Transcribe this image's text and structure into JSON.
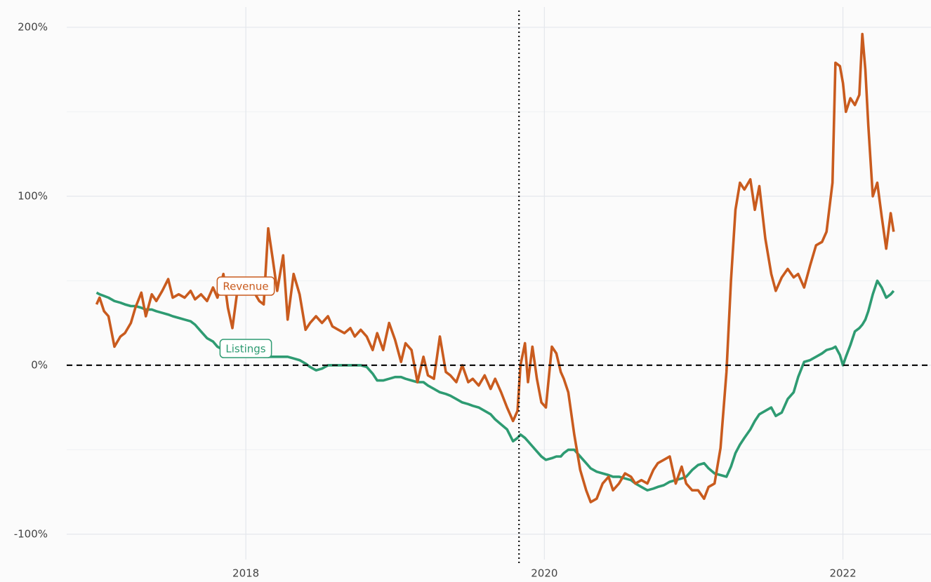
{
  "chart_data": {
    "type": "line",
    "x": [
      2017.0,
      2017.02,
      2017.05,
      2017.08,
      2017.12,
      2017.16,
      2017.19,
      2017.23,
      2017.26,
      2017.3,
      2017.33,
      2017.37,
      2017.4,
      2017.44,
      2017.48,
      2017.51,
      2017.55,
      2017.59,
      2017.63,
      2017.66,
      2017.7,
      2017.74,
      2017.78,
      2017.81,
      2017.85,
      2017.88,
      2017.91,
      2017.94,
      2017.97,
      2018.01,
      2018.05,
      2018.09,
      2018.12,
      2018.15,
      2018.18,
      2018.21,
      2018.25,
      2018.28,
      2018.32,
      2018.36,
      2018.4,
      2018.43,
      2018.47,
      2018.51,
      2018.55,
      2018.58,
      2018.62,
      2018.66,
      2018.7,
      2018.73,
      2018.77,
      2018.81,
      2018.85,
      2018.88,
      2018.92,
      2018.96,
      2019.0,
      2019.04,
      2019.07,
      2019.11,
      2019.15,
      2019.19,
      2019.22,
      2019.26,
      2019.3,
      2019.34,
      2019.37,
      2019.41,
      2019.45,
      2019.49,
      2019.52,
      2019.56,
      2019.6,
      2019.64,
      2019.67,
      2019.71,
      2019.75,
      2019.79,
      2019.82,
      2019.84,
      2019.87,
      2019.89,
      2019.92,
      2019.95,
      2019.98,
      2020.01,
      2020.05,
      2020.08,
      2020.11,
      2020.13,
      2020.16,
      2020.2,
      2020.24,
      2020.28,
      2020.31,
      2020.35,
      2020.39,
      2020.43,
      2020.46,
      2020.5,
      2020.54,
      2020.58,
      2020.61,
      2020.65,
      2020.69,
      2020.73,
      2020.76,
      2020.8,
      2020.84,
      2020.88,
      2020.92,
      2020.95,
      2020.99,
      2021.03,
      2021.07,
      2021.1,
      2021.14,
      2021.18,
      2021.22,
      2021.25,
      2021.28,
      2021.31,
      2021.34,
      2021.38,
      2021.41,
      2021.44,
      2021.48,
      2021.52,
      2021.55,
      2021.59,
      2021.63,
      2021.67,
      2021.7,
      2021.74,
      2021.78,
      2021.82,
      2021.86,
      2021.89,
      2021.93,
      2021.95,
      2021.98,
      2022.0,
      2022.02,
      2022.05,
      2022.08,
      2022.11,
      2022.13,
      2022.15,
      2022.17,
      2022.2,
      2022.23,
      2022.26,
      2022.29,
      2022.32,
      2022.34
    ],
    "series": [
      {
        "name": "Revenue",
        "color": "#c95b1e",
        "values": [
          36,
          40,
          32,
          29,
          11,
          17,
          19,
          25,
          34,
          43,
          29,
          42,
          38,
          44,
          51,
          40,
          42,
          40,
          44,
          39,
          42,
          38,
          46,
          40,
          54,
          34,
          22,
          42,
          46,
          42,
          44,
          38,
          36,
          81,
          63,
          44,
          65,
          27,
          54,
          42,
          21,
          25,
          29,
          25,
          29,
          23,
          21,
          19,
          22,
          17,
          21,
          17,
          9,
          19,
          9,
          25,
          15,
          2,
          13,
          9,
          -10,
          5,
          -6,
          -8,
          17,
          -4,
          -6,
          -10,
          0,
          -10,
          -8,
          -12,
          -6,
          -14,
          -8,
          -16,
          -25,
          -33,
          -27,
          0,
          13,
          -10,
          11,
          -8,
          -22,
          -25,
          11,
          7,
          -4,
          -8,
          -16,
          -41,
          -62,
          -74,
          -81,
          -79,
          -70,
          -66,
          -74,
          -70,
          -64,
          -66,
          -70,
          -68,
          -70,
          -62,
          -58,
          -56,
          -54,
          -70,
          -60,
          -70,
          -74,
          -74,
          -79,
          -72,
          -70,
          -49,
          -4,
          50,
          92,
          108,
          104,
          110,
          92,
          106,
          75,
          54,
          44,
          52,
          57,
          52,
          54,
          46,
          59,
          71,
          73,
          79,
          108,
          179,
          177,
          167,
          150,
          158,
          154,
          160,
          196,
          175,
          142,
          100,
          108,
          88,
          69,
          90,
          79
        ]
      },
      {
        "name": "Listings",
        "color": "#2e9b72",
        "values": [
          43,
          42,
          41,
          40,
          38,
          37,
          36,
          35,
          35,
          34,
          33,
          33,
          32,
          31,
          30,
          29,
          28,
          27,
          26,
          24,
          20,
          16,
          14,
          11,
          9,
          8,
          8,
          8,
          7,
          7,
          6,
          6,
          5,
          5,
          5,
          5,
          5,
          5,
          4,
          3,
          1,
          -1,
          -3,
          -2,
          0,
          0,
          0,
          0,
          0,
          0,
          0,
          -1,
          -5,
          -9,
          -9,
          -8,
          -7,
          -7,
          -8,
          -9,
          -10,
          -10,
          -12,
          -14,
          -16,
          -17,
          -18,
          -20,
          -22,
          -23,
          -24,
          -25,
          -27,
          -29,
          -32,
          -35,
          -38,
          -45,
          -43,
          -41,
          -43,
          -45,
          -48,
          -51,
          -54,
          -56,
          -55,
          -54,
          -54,
          -52,
          -50,
          -50,
          -54,
          -58,
          -61,
          -63,
          -64,
          -65,
          -66,
          -66,
          -67,
          -68,
          -70,
          -72,
          -74,
          -73,
          -72,
          -71,
          -69,
          -68,
          -67,
          -66,
          -62,
          -59,
          -58,
          -61,
          -64,
          -65,
          -66,
          -60,
          -52,
          -47,
          -43,
          -38,
          -33,
          -29,
          -27,
          -25,
          -30,
          -28,
          -20,
          -16,
          -7,
          2,
          3,
          5,
          7,
          9,
          10,
          11,
          6,
          0,
          5,
          12,
          20,
          22,
          24,
          27,
          32,
          42,
          50,
          46,
          40,
          42,
          44
        ]
      }
    ],
    "xlim": [
      2016.8,
      2022.59
    ],
    "xticks": [
      2018,
      2020,
      2022
    ],
    "ylim": [
      -115,
      212
    ],
    "yticks": [
      {
        "value": -100,
        "label": "-100%"
      },
      {
        "value": 0,
        "label": "0%"
      },
      {
        "value": 100,
        "label": "100%"
      },
      {
        "value": 200,
        "label": "200%"
      }
    ],
    "y_minor_ticks": [
      -50,
      50,
      150
    ],
    "grid": true,
    "vline": 2019.83,
    "hline": 0
  }
}
